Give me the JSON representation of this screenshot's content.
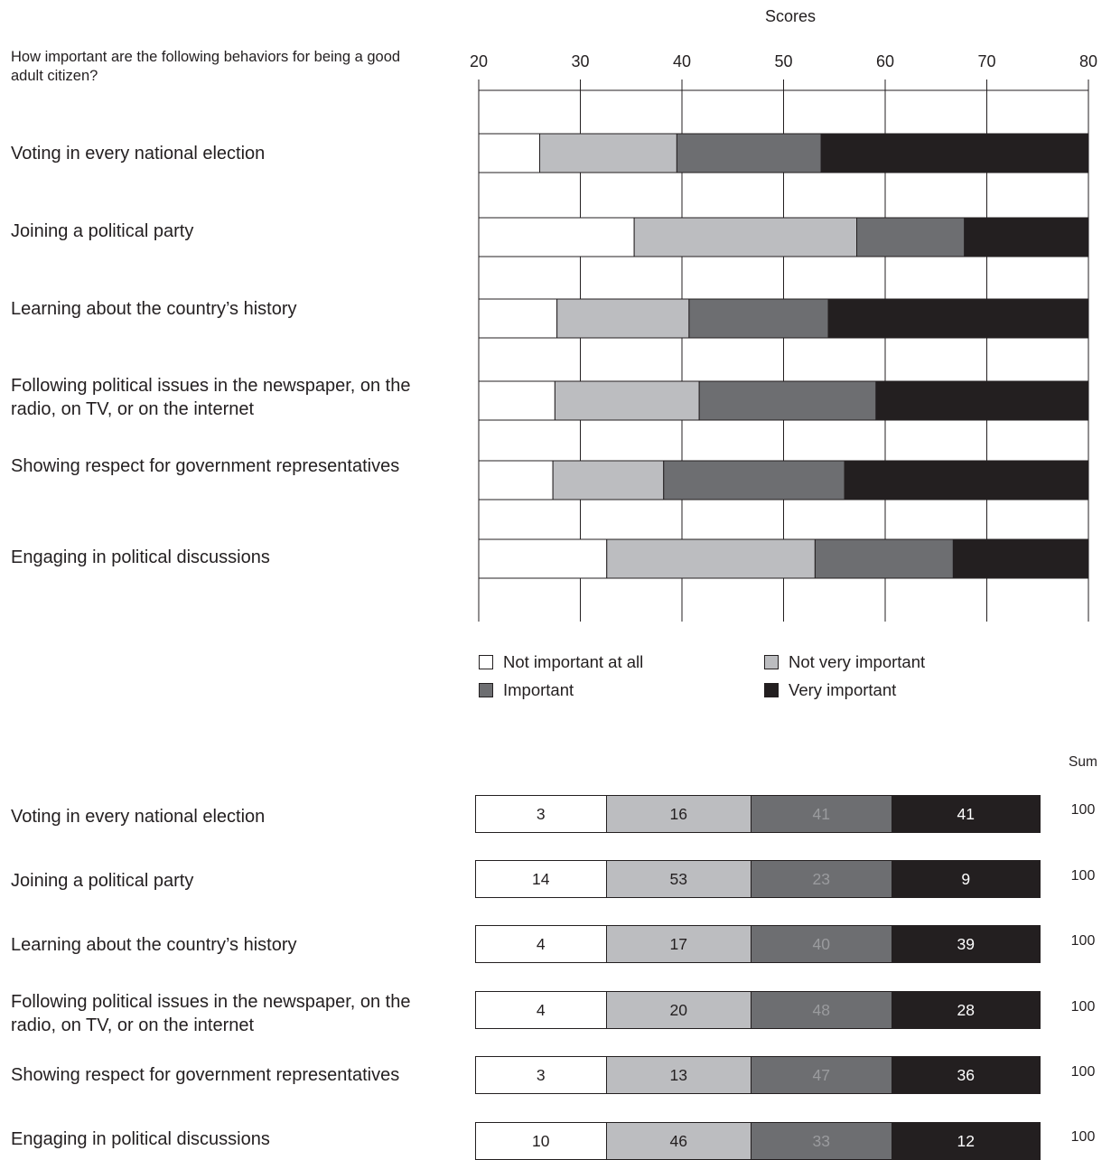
{
  "question": "How important are the following behaviors for being a good adult citizen?",
  "colors": {
    "not_important_at_all": "#ffffff",
    "not_very_important": "#bcbdc0",
    "important": "#6d6e71",
    "very_important": "#231f20"
  },
  "chart_data": [
    {
      "type": "bar",
      "orientation": "horizontal",
      "stacked": true,
      "xlabel": "Scores",
      "xlim": [
        20,
        80
      ],
      "xticks": [
        20,
        30,
        40,
        50,
        60,
        70,
        80
      ],
      "grid": true,
      "categories": [
        "Voting in every national election",
        "Joining a political party",
        "Learning about the country’s history",
        "Following political issues in the newspaper, on the radio, on TV, or on the internet",
        "Showing respect for government representatives",
        "Engaging in political discussions"
      ],
      "boundaries": [
        [
          26,
          39.5,
          53.7
        ],
        [
          35.3,
          57.2,
          67.8
        ],
        [
          27.7,
          40.7,
          54.4
        ],
        [
          27.5,
          41.7,
          59.1
        ],
        [
          27.3,
          38.2,
          56
        ],
        [
          32.6,
          53.1,
          66.7
        ]
      ],
      "series": [
        {
          "name": "Not important at all",
          "color": "#ffffff"
        },
        {
          "name": "Not very important",
          "color": "#bcbdc0"
        },
        {
          "name": "Important",
          "color": "#6d6e71"
        },
        {
          "name": "Very important",
          "color": "#231f20"
        }
      ],
      "legend": {
        "position": "bottom",
        "items": [
          "Not important at all",
          "Not very important",
          "Important",
          "Very important"
        ]
      }
    },
    {
      "type": "table",
      "categories": [
        "Voting in every national election",
        "Joining a political party",
        "Learning about the country’s history",
        "Following political issues in the newspaper, on the radio, on TV, or on the internet",
        "Showing respect for government representatives",
        "Engaging in political discussions"
      ],
      "columns": [
        "Not important at all",
        "Not very important",
        "Important",
        "Very important"
      ],
      "rows": [
        [
          "3",
          "16",
          "41",
          "41"
        ],
        [
          "14",
          "53",
          "23",
          "9"
        ],
        [
          "4",
          "17",
          "40",
          "39"
        ],
        [
          "4",
          "20",
          "48",
          "28"
        ],
        [
          "3",
          "13",
          "47",
          "36"
        ],
        [
          "10",
          "46",
          "33",
          "12"
        ]
      ],
      "sum_header": "Sum",
      "sums": [
        "100",
        "100",
        "100",
        "100",
        "100",
        "100"
      ]
    }
  ]
}
